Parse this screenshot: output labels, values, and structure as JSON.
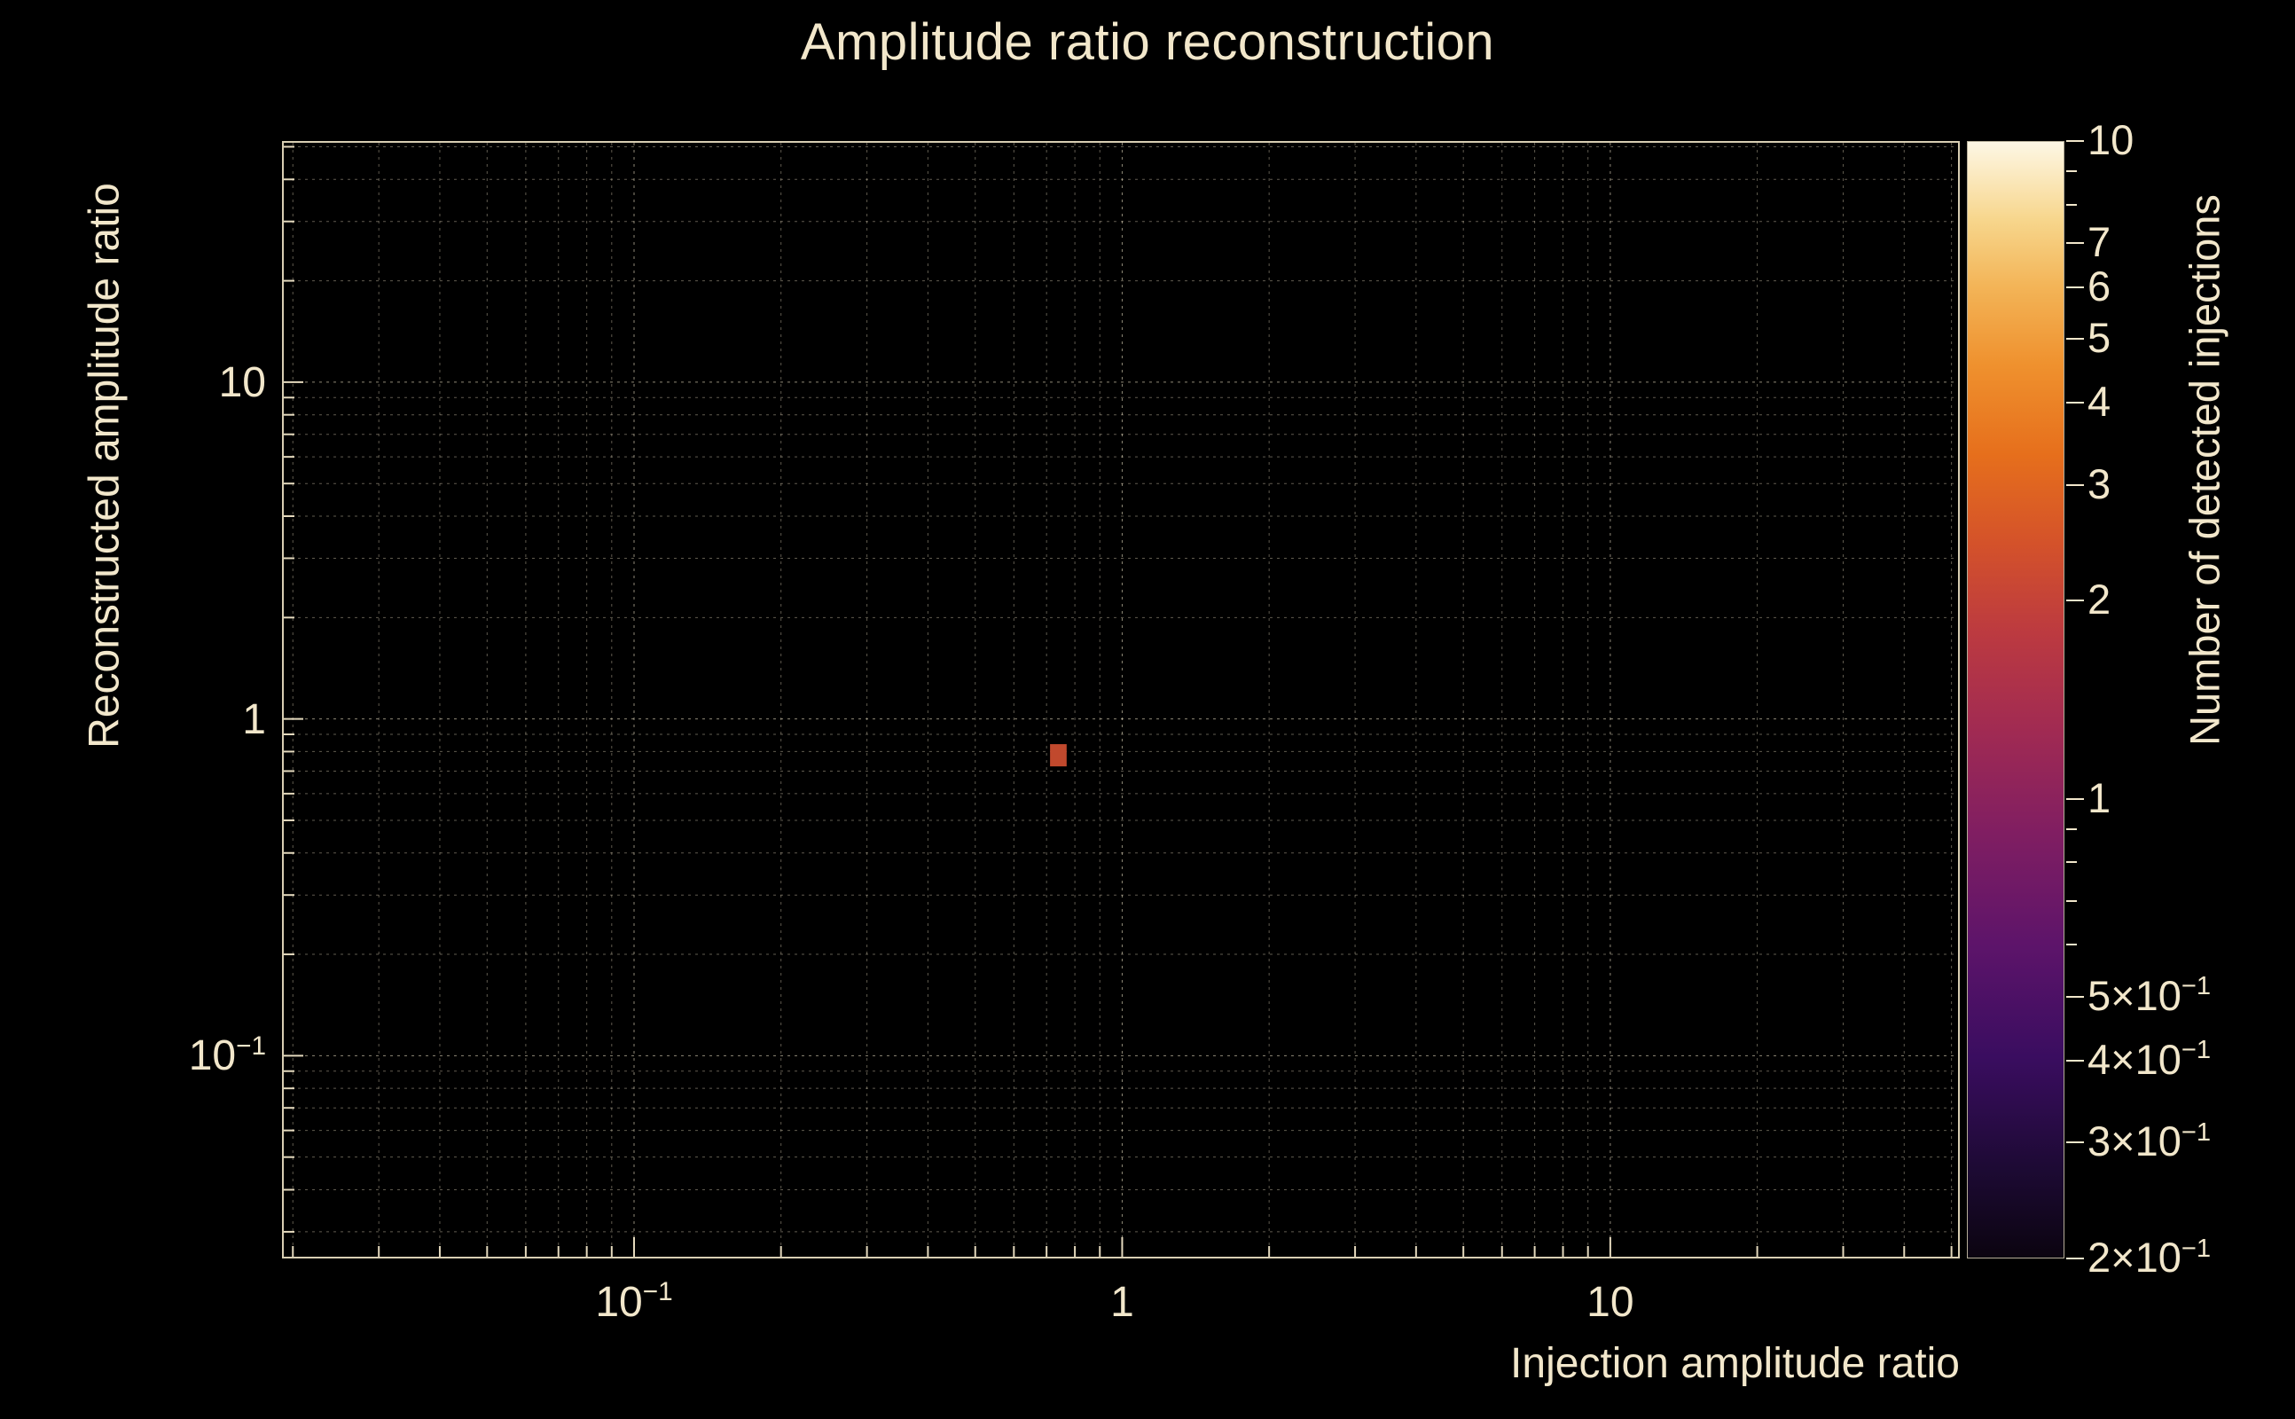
{
  "figure": {
    "background": "#000000",
    "text_color": "#f2e7cb",
    "frame_color": "#efe4c6",
    "grid_color": "#efe4c6"
  },
  "chart_data": {
    "type": "heatmap",
    "title": "Amplitude ratio reconstruction",
    "xlabel": "Injection amplitude ratio",
    "ylabel": "Reconstructed amplitude ratio",
    "colorbar_label": "Number of detected injections",
    "x_scale": "log",
    "y_scale": "log",
    "z_scale": "log",
    "xlim": [
      0.019,
      52
    ],
    "ylim": [
      0.025,
      52
    ],
    "zlim": [
      0.2,
      10
    ],
    "grid": true,
    "x_ticks": [
      {
        "v": 0.1,
        "label": "10^{−1}"
      },
      {
        "v": 1,
        "label": "1"
      },
      {
        "v": 10,
        "label": "10"
      }
    ],
    "y_ticks": [
      {
        "v": 0.1,
        "label": "10^{−1}"
      },
      {
        "v": 1,
        "label": "1"
      },
      {
        "v": 10,
        "label": "10"
      }
    ],
    "colorbar_ticks": [
      {
        "v": 10,
        "label": "10"
      },
      {
        "v": 9,
        "label": null
      },
      {
        "v": 8,
        "label": null
      },
      {
        "v": 7,
        "label": "7"
      },
      {
        "v": 6,
        "label": "6"
      },
      {
        "v": 5,
        "label": "5"
      },
      {
        "v": 4,
        "label": "4"
      },
      {
        "v": 3,
        "label": "3"
      },
      {
        "v": 2,
        "label": "2"
      },
      {
        "v": 1,
        "label": "1"
      },
      {
        "v": 0.9,
        "label": null
      },
      {
        "v": 0.8,
        "label": null
      },
      {
        "v": 0.7,
        "label": null
      },
      {
        "v": 0.6,
        "label": null
      },
      {
        "v": 0.5,
        "label": "5×10^{−1}"
      },
      {
        "v": 0.4,
        "label": "4×10^{−1}"
      },
      {
        "v": 0.3,
        "label": "3×10^{−1}"
      },
      {
        "v": 0.2,
        "label": "2×10^{−1}"
      }
    ],
    "colormap_stops": [
      {
        "pos": 0.0,
        "color": "#0b0410"
      },
      {
        "pos": 0.08,
        "color": "#1d0a34"
      },
      {
        "pos": 0.18,
        "color": "#3a0d60"
      },
      {
        "pos": 0.28,
        "color": "#5d146a"
      },
      {
        "pos": 0.38,
        "color": "#801e62"
      },
      {
        "pos": 0.47,
        "color": "#a02a53"
      },
      {
        "pos": 0.56,
        "color": "#bc3a40"
      },
      {
        "pos": 0.64,
        "color": "#d4522a"
      },
      {
        "pos": 0.72,
        "color": "#e66f1c"
      },
      {
        "pos": 0.8,
        "color": "#ef912e"
      },
      {
        "pos": 0.87,
        "color": "#f3b457"
      },
      {
        "pos": 0.93,
        "color": "#f7d68c"
      },
      {
        "pos": 0.97,
        "color": "#fbe9bf"
      },
      {
        "pos": 1.0,
        "color": "#fdf7e5"
      }
    ],
    "bins": [
      {
        "x": 0.74,
        "y": 0.78,
        "count": 1,
        "color": "#c1492d"
      }
    ],
    "bin_size_decades": {
      "x": 0.034,
      "y": 0.066
    }
  }
}
